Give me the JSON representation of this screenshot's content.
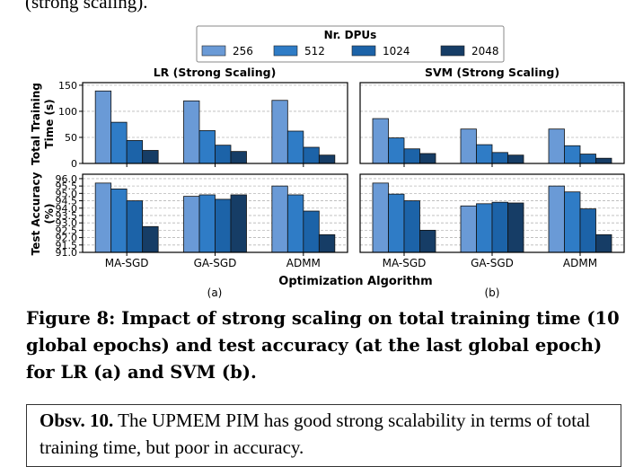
{
  "top_text": "(strong scaling).",
  "legend": {
    "title": "Nr. DPUs",
    "entries": [
      "256",
      "512",
      "1024",
      "2048"
    ],
    "colors": [
      "#6a9ad6",
      "#2f7cc6",
      "#1c63a8",
      "#163d66"
    ]
  },
  "panel_letters": [
    "(a)",
    "(b)"
  ],
  "xlabel": "Optimization Algorithm",
  "chart_data": [
    {
      "type": "bar",
      "title": "LR (Strong Scaling)",
      "ylabel": "Total Training Time (s)",
      "ylim": [
        0,
        155
      ],
      "yticks": [
        0,
        50,
        100,
        150
      ],
      "grid": true,
      "categories": [
        "MA-SGD",
        "GA-SGD",
        "ADMM"
      ],
      "series": [
        {
          "name": "256",
          "values": [
            139,
            120,
            121
          ]
        },
        {
          "name": "512",
          "values": [
            79,
            63,
            62
          ]
        },
        {
          "name": "1024",
          "values": [
            44,
            35,
            31
          ]
        },
        {
          "name": "2048",
          "values": [
            25,
            23,
            16
          ]
        }
      ]
    },
    {
      "type": "bar",
      "title": "SVM (Strong Scaling)",
      "ylabel": "Total Training Time (s)",
      "ylim": [
        0,
        155
      ],
      "yticks": [
        0,
        50,
        100,
        150
      ],
      "grid": true,
      "categories": [
        "MA-SGD",
        "GA-SGD",
        "ADMM"
      ],
      "series": [
        {
          "name": "256",
          "values": [
            86,
            66,
            66
          ]
        },
        {
          "name": "512",
          "values": [
            49,
            36,
            34
          ]
        },
        {
          "name": "1024",
          "values": [
            28,
            21,
            18
          ]
        },
        {
          "name": "2048",
          "values": [
            19,
            16,
            10
          ]
        }
      ]
    },
    {
      "type": "bar",
      "title": "",
      "ylabel": "Test Accuracy (%)",
      "ylim": [
        91.0,
        96.3
      ],
      "yticks": [
        91.0,
        91.5,
        92.0,
        92.5,
        93.0,
        93.5,
        94.0,
        94.5,
        95.0,
        95.5,
        96.0
      ],
      "yticklabels": [
        "91.0",
        "91.5",
        "92.0",
        "92.5",
        "93.0",
        "93.5",
        "94.0",
        "94.5",
        "95.0",
        "95.5",
        "96.0"
      ],
      "grid": true,
      "categories": [
        "MA-SGD",
        "GA-SGD",
        "ADMM"
      ],
      "series": [
        {
          "name": "256",
          "values": [
            95.7,
            94.8,
            95.5
          ]
        },
        {
          "name": "512",
          "values": [
            95.3,
            94.9,
            94.9
          ]
        },
        {
          "name": "1024",
          "values": [
            94.5,
            94.6,
            93.8
          ]
        },
        {
          "name": "2048",
          "values": [
            92.75,
            94.9,
            92.2
          ]
        }
      ]
    },
    {
      "type": "bar",
      "title": "",
      "ylabel": "Test Accuracy (%)",
      "ylim": [
        91.0,
        96.3
      ],
      "yticks": [
        91.0,
        91.5,
        92.0,
        92.5,
        93.0,
        93.5,
        94.0,
        94.5,
        95.0,
        95.5,
        96.0
      ],
      "grid": true,
      "categories": [
        "MA-SGD",
        "GA-SGD",
        "ADMM"
      ],
      "series": [
        {
          "name": "256",
          "values": [
            95.7,
            94.15,
            95.5
          ]
        },
        {
          "name": "512",
          "values": [
            94.95,
            94.3,
            95.1
          ]
        },
        {
          "name": "1024",
          "values": [
            94.5,
            94.4,
            93.95
          ]
        },
        {
          "name": "2048",
          "values": [
            92.5,
            94.35,
            92.2
          ]
        }
      ]
    }
  ],
  "caption": "Figure 8: Impact of strong scaling on total training time (10 global epochs) and test accuracy (at the last global epoch) for LR (a) and SVM (b).",
  "observation": {
    "label": "Obsv. 10.",
    "text": " The UPMEM PIM has good strong scalability in terms of total training time, but poor in accuracy."
  }
}
